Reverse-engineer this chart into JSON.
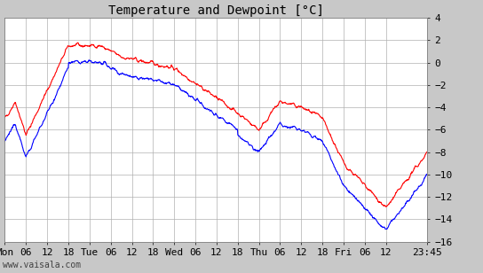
{
  "title": "Temperature and Dewpoint [°C]",
  "watermark": "www.vaisala.com",
  "ylim": [
    -16,
    4
  ],
  "yticks": [
    -16,
    -14,
    -12,
    -10,
    -8,
    -6,
    -4,
    -2,
    0,
    2,
    4
  ],
  "xtick_labels": [
    "Mon",
    "06",
    "12",
    "18",
    "Tue",
    "06",
    "12",
    "18",
    "Wed",
    "06",
    "12",
    "18",
    "Thu",
    "06",
    "12",
    "18",
    "Fri",
    "06",
    "12",
    "23:45"
  ],
  "temp_color": "#ff0000",
  "dewpoint_color": "#0000ff",
  "background_color": "#c8c8c8",
  "plot_bg_color": "#ffffff",
  "grid_color": "#b0b0b0",
  "title_fontsize": 10,
  "tick_fontsize": 8,
  "line_width": 0.8
}
